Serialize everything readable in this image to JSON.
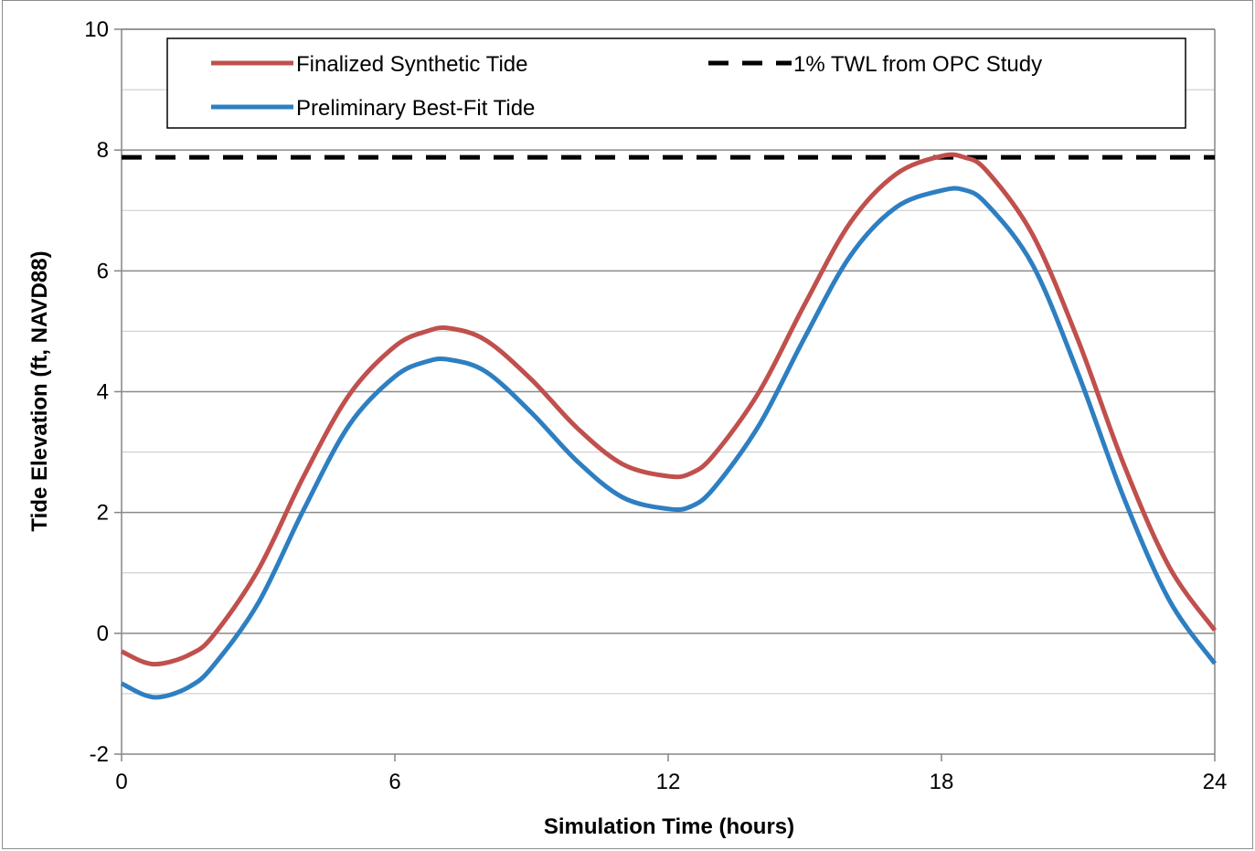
{
  "chart_data": {
    "type": "line",
    "title": "",
    "xlabel": "Simulation Time (hours)",
    "ylabel": "Tide Elevation (ft, NAVD88)",
    "xlim": [
      0,
      24
    ],
    "ylim": [
      -2,
      10
    ],
    "x_ticks": [
      0,
      6,
      12,
      18,
      24
    ],
    "x_tick_labels": [
      "0",
      "6",
      "12",
      "18",
      "24"
    ],
    "y_ticks": [
      -2,
      0,
      2,
      4,
      6,
      8,
      10
    ],
    "y_tick_labels": [
      "-2",
      "0",
      "2",
      "4",
      "6",
      "8",
      "10"
    ],
    "grid": "horizontal, every 1 ft",
    "legend_position": "top",
    "series": [
      {
        "name": "Finalized Synthetic Tide",
        "color": "#c0504d",
        "style": "solid",
        "x": [
          0,
          0.5,
          0.9,
          1.5,
          2,
          3,
          4,
          5,
          6,
          6.7,
          7.2,
          8,
          9,
          10,
          11,
          12,
          12.5,
          13,
          14,
          15,
          16,
          17,
          18,
          18.5,
          19,
          20,
          21,
          22,
          23,
          24
        ],
        "y": [
          -0.3,
          -0.48,
          -0.5,
          -0.35,
          -0.05,
          1.05,
          2.6,
          3.95,
          4.75,
          5.0,
          5.05,
          4.85,
          4.2,
          3.4,
          2.8,
          2.6,
          2.65,
          2.95,
          4.0,
          5.45,
          6.8,
          7.6,
          7.9,
          7.88,
          7.65,
          6.6,
          4.85,
          2.8,
          1.1,
          0.05
        ]
      },
      {
        "name": "Preliminary Best-Fit Tide",
        "color": "#2e7fc1",
        "style": "solid",
        "x": [
          0,
          0.5,
          0.9,
          1.5,
          2,
          3,
          4,
          5,
          6,
          6.7,
          7.2,
          8,
          9,
          10,
          11,
          12,
          12.5,
          13,
          14,
          15,
          16,
          17,
          18,
          18.5,
          19,
          20,
          21,
          22,
          23,
          24
        ],
        "y": [
          -0.83,
          -1.02,
          -1.05,
          -0.88,
          -0.55,
          0.5,
          2.05,
          3.45,
          4.25,
          4.5,
          4.53,
          4.33,
          3.65,
          2.85,
          2.25,
          2.06,
          2.1,
          2.4,
          3.45,
          4.9,
          6.25,
          7.05,
          7.33,
          7.34,
          7.1,
          6.1,
          4.3,
          2.25,
          0.55,
          -0.5
        ]
      },
      {
        "name": "1% TWL from OPC Study",
        "color": "#000000",
        "style": "dashed",
        "x": [
          0,
          24
        ],
        "y": [
          7.88,
          7.88
        ]
      }
    ],
    "legend": [
      {
        "label": "Finalized Synthetic Tide",
        "color": "#c0504d",
        "style": "solid"
      },
      {
        "label": "1% TWL from OPC Study",
        "color": "#000000",
        "style": "dashed"
      },
      {
        "label": "Preliminary Best-Fit Tide",
        "color": "#2e7fc1",
        "style": "solid"
      }
    ]
  }
}
